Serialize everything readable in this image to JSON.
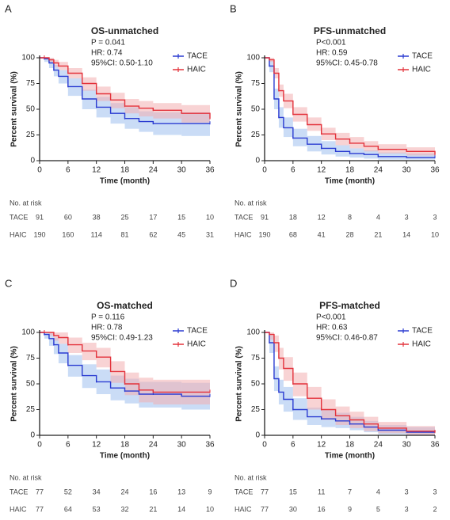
{
  "chart_data": [
    {
      "type": "line",
      "step": true,
      "panel_label": "A",
      "title": "OS-unmatched",
      "annotations": [
        "P = 0.041",
        "HR: 0.74",
        "95%CI: 0.50-1.10"
      ],
      "x_label": "Time (month)",
      "y_label": "Percent survival (%)",
      "xlim": [
        0,
        36
      ],
      "xticks": [
        0,
        6,
        12,
        18,
        24,
        30,
        36
      ],
      "ylim": [
        0,
        100
      ],
      "yticks": [
        0,
        25,
        50,
        75,
        100
      ],
      "x": [
        0,
        1,
        2,
        3,
        4,
        6,
        9,
        12,
        15,
        18,
        21,
        24,
        30,
        36
      ],
      "series": [
        {
          "name": "TACE",
          "color": "#2a3bd1",
          "band_color": "#9fc0ee",
          "values": [
            100,
            99,
            95,
            88,
            82,
            72,
            60,
            52,
            46,
            41,
            38,
            36,
            36,
            36
          ],
          "ci_lower": [
            100,
            96,
            90,
            82,
            75,
            63,
            50,
            42,
            36,
            31,
            28,
            25,
            24,
            24
          ],
          "ci_upper": [
            100,
            100,
            99,
            93,
            88,
            80,
            69,
            62,
            56,
            52,
            48,
            47,
            47,
            47
          ]
        },
        {
          "name": "HAIC",
          "color": "#e3323b",
          "band_color": "#f2aeb0",
          "values": [
            100,
            100,
            98,
            95,
            92,
            85,
            75,
            65,
            59,
            53,
            51,
            49,
            46,
            41
          ],
          "ci_lower": [
            100,
            99,
            96,
            91,
            88,
            80,
            68,
            58,
            51,
            46,
            43,
            41,
            37,
            32
          ],
          "ci_upper": [
            100,
            100,
            100,
            98,
            96,
            90,
            81,
            72,
            66,
            60,
            58,
            56,
            54,
            50
          ]
        }
      ],
      "risk_table": {
        "title": "No. at risk",
        "rows": [
          {
            "name": "TACE",
            "values": [
              91,
              60,
              38,
              25,
              17,
              15,
              10
            ]
          },
          {
            "name": "HAIC",
            "values": [
              190,
              160,
              114,
              81,
              62,
              45,
              31
            ]
          }
        ]
      }
    },
    {
      "type": "line",
      "step": true,
      "panel_label": "B",
      "title": "PFS-unmatched",
      "annotations": [
        "P<0.001",
        "HR: 0.59",
        "95%CI: 0.45-0.78"
      ],
      "x_label": "Time (month)",
      "y_label": "Percent survival (%)",
      "xlim": [
        0,
        36
      ],
      "xticks": [
        0,
        6,
        12,
        18,
        24,
        30,
        36
      ],
      "ylim": [
        0,
        100
      ],
      "yticks": [
        0,
        25,
        50,
        75,
        100
      ],
      "x": [
        0,
        1,
        2,
        3,
        4,
        6,
        9,
        12,
        15,
        18,
        21,
        24,
        30,
        36
      ],
      "series": [
        {
          "name": "TACE",
          "color": "#2a3bd1",
          "band_color": "#9fc0ee",
          "values": [
            100,
            92,
            60,
            42,
            32,
            22,
            16,
            12,
            9,
            7,
            6,
            4,
            3,
            3
          ],
          "ci_lower": [
            100,
            86,
            50,
            32,
            23,
            14,
            9,
            6,
            4,
            3,
            2,
            1,
            1,
            1
          ],
          "ci_upper": [
            100,
            97,
            70,
            52,
            42,
            31,
            24,
            19,
            15,
            12,
            10,
            8,
            7,
            7
          ]
        },
        {
          "name": "HAIC",
          "color": "#e3323b",
          "band_color": "#f2aeb0",
          "values": [
            100,
            98,
            85,
            68,
            58,
            45,
            35,
            26,
            21,
            17,
            14,
            11,
            9,
            6
          ],
          "ci_lower": [
            100,
            96,
            80,
            62,
            51,
            38,
            29,
            20,
            15,
            12,
            9,
            7,
            5,
            3
          ],
          "ci_upper": [
            100,
            100,
            90,
            74,
            65,
            52,
            42,
            32,
            27,
            23,
            19,
            16,
            13,
            10
          ]
        }
      ],
      "risk_table": {
        "title": "No. at risk",
        "rows": [
          {
            "name": "TACE",
            "values": [
              91,
              18,
              12,
              8,
              4,
              3,
              3
            ]
          },
          {
            "name": "HAIC",
            "values": [
              190,
              68,
              41,
              28,
              21,
              14,
              10
            ]
          }
        ]
      }
    },
    {
      "type": "line",
      "step": true,
      "panel_label": "C",
      "title": "OS-matched",
      "annotations": [
        "P = 0.116",
        "HR: 0.78",
        "95%CI: 0.49-1.23"
      ],
      "x_label": "Time (month)",
      "y_label": "Percent survival (%)",
      "xlim": [
        0,
        36
      ],
      "xticks": [
        0,
        6,
        12,
        18,
        24,
        30,
        36
      ],
      "ylim": [
        0,
        100
      ],
      "yticks": [
        0,
        25,
        50,
        75,
        100
      ],
      "x": [
        0,
        1,
        2,
        3,
        4,
        6,
        9,
        12,
        15,
        18,
        21,
        24,
        30,
        36
      ],
      "series": [
        {
          "name": "TACE",
          "color": "#2a3bd1",
          "band_color": "#9fc0ee",
          "values": [
            100,
            98,
            94,
            88,
            80,
            68,
            58,
            52,
            46,
            43,
            40,
            40,
            38,
            38
          ],
          "ci_lower": [
            100,
            94,
            87,
            79,
            70,
            57,
            46,
            40,
            34,
            31,
            27,
            27,
            25,
            25
          ],
          "ci_upper": [
            100,
            100,
            99,
            95,
            89,
            78,
            69,
            64,
            58,
            55,
            52,
            52,
            51,
            51
          ]
        },
        {
          "name": "HAIC",
          "color": "#e3323b",
          "band_color": "#f2aeb0",
          "values": [
            100,
            100,
            100,
            97,
            95,
            88,
            82,
            76,
            62,
            50,
            44,
            42,
            42,
            42
          ],
          "ci_lower": [
            100,
            100,
            97,
            92,
            89,
            80,
            73,
            66,
            51,
            39,
            32,
            30,
            30,
            30
          ],
          "ci_upper": [
            100,
            100,
            100,
            100,
            100,
            95,
            90,
            85,
            72,
            61,
            56,
            54,
            54,
            54
          ]
        }
      ],
      "risk_table": {
        "title": "No. at risk",
        "rows": [
          {
            "name": "TACE",
            "values": [
              77,
              52,
              34,
              24,
              16,
              13,
              9
            ]
          },
          {
            "name": "HAIC",
            "values": [
              77,
              64,
              53,
              32,
              21,
              14,
              10
            ]
          }
        ]
      }
    },
    {
      "type": "line",
      "step": true,
      "panel_label": "D",
      "title": "PFS-matched",
      "annotations": [
        "P<0.001",
        "HR: 0.63",
        "95%CI: 0.46-0.87"
      ],
      "x_label": "Time (month)",
      "y_label": "Percent survival (%)",
      "xlim": [
        0,
        36
      ],
      "xticks": [
        0,
        6,
        12,
        18,
        24,
        30,
        36
      ],
      "ylim": [
        0,
        100
      ],
      "yticks": [
        0,
        25,
        50,
        75,
        100
      ],
      "x": [
        0,
        1,
        2,
        3,
        4,
        6,
        9,
        12,
        15,
        18,
        21,
        24,
        30,
        36
      ],
      "series": [
        {
          "name": "TACE",
          "color": "#2a3bd1",
          "band_color": "#9fc0ee",
          "values": [
            100,
            90,
            55,
            42,
            35,
            25,
            18,
            16,
            14,
            11,
            8,
            5,
            3,
            3
          ],
          "ci_lower": [
            100,
            80,
            43,
            30,
            23,
            15,
            10,
            8,
            7,
            5,
            3,
            1,
            0,
            0
          ],
          "ci_upper": [
            100,
            97,
            67,
            54,
            47,
            36,
            27,
            25,
            22,
            18,
            14,
            10,
            8,
            8
          ]
        },
        {
          "name": "HAIC",
          "color": "#e3323b",
          "band_color": "#f2aeb0",
          "values": [
            100,
            98,
            90,
            75,
            65,
            50,
            36,
            25,
            19,
            15,
            11,
            7,
            4,
            3
          ],
          "ci_lower": [
            100,
            93,
            81,
            64,
            53,
            38,
            25,
            15,
            10,
            7,
            4,
            2,
            0,
            0
          ],
          "ci_upper": [
            100,
            100,
            97,
            85,
            76,
            61,
            47,
            35,
            28,
            23,
            18,
            13,
            9,
            8
          ]
        }
      ],
      "risk_table": {
        "title": "No. at risk",
        "rows": [
          {
            "name": "TACE",
            "values": [
              77,
              15,
              11,
              7,
              4,
              3,
              3
            ]
          },
          {
            "name": "HAIC",
            "values": [
              77,
              30,
              16,
              9,
              5,
              3,
              2
            ]
          }
        ]
      }
    }
  ]
}
